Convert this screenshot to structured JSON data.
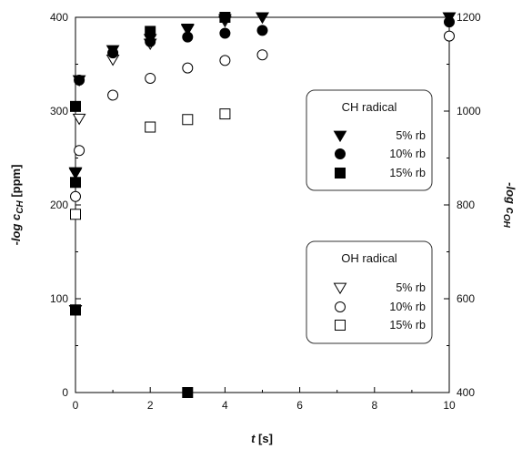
{
  "chart_data": {
    "type": "scatter",
    "xlabel": {
      "main": "t",
      "unit": " [s]"
    },
    "ylabel_left": {
      "prefix": "-log c",
      "sub": "CH",
      "unit": " [ppm]"
    },
    "ylabel_right": {
      "prefix": "-log c",
      "sub": "OH",
      "unit": ""
    },
    "xlim": [
      0,
      10
    ],
    "ylim_left": [
      0,
      400
    ],
    "ylim_right": [
      400,
      1200
    ],
    "xticks": [
      "0",
      "2",
      "4",
      "6",
      "8",
      "10"
    ],
    "yticks_left": [
      "0",
      "100",
      "200",
      "300",
      "400"
    ],
    "yticks_right": [
      "400",
      "600",
      "800",
      "1000",
      "1200"
    ],
    "grid": false,
    "legends": [
      {
        "title": "CH radical",
        "entries": [
          "5% rb",
          "10% rb",
          "15% rb"
        ]
      },
      {
        "title": "OH radical",
        "entries": [
          "5% rb",
          "10% rb",
          "15% rb"
        ]
      }
    ],
    "series": [
      {
        "group": "CH radical",
        "label": "5% rb",
        "axis": "left",
        "marker": "triangle-down-filled",
        "x": [
          0,
          0.1,
          1,
          2,
          3,
          4,
          5,
          10
        ],
        "y": [
          235,
          333,
          365,
          377,
          388,
          398,
          400,
          400
        ]
      },
      {
        "group": "CH radical",
        "label": "10% rb",
        "axis": "left",
        "marker": "circle-filled",
        "x": [
          0.1,
          1,
          2,
          3,
          4,
          5,
          10
        ],
        "y": [
          333,
          362,
          374,
          379,
          383,
          386,
          395
        ]
      },
      {
        "group": "CH radical",
        "label": "15% rb",
        "axis": "left",
        "marker": "square-filled",
        "x": [
          0,
          0,
          0,
          2,
          3,
          4
        ],
        "y": [
          88,
          224,
          305,
          385,
          0,
          400
        ]
      },
      {
        "group": "OH radical",
        "label": "5% rb",
        "axis": "left",
        "marker": "triangle-down-open",
        "x": [
          0,
          0,
          0.1,
          1,
          2,
          3,
          4,
          5,
          10
        ],
        "y": [
          88,
          234,
          292,
          355,
          372,
          387,
          396,
          400,
          400
        ]
      },
      {
        "group": "OH radical",
        "label": "10% rb",
        "axis": "left",
        "marker": "circle-open",
        "x": [
          0,
          0,
          0.1,
          1,
          2,
          3,
          4,
          5,
          10
        ],
        "y": [
          88,
          209,
          258,
          317,
          335,
          346,
          354,
          360,
          380
        ]
      },
      {
        "group": "OH radical",
        "label": "15% rb",
        "axis": "left",
        "marker": "square-open",
        "x": [
          0,
          0,
          2,
          3,
          4
        ],
        "y": [
          88,
          190,
          283,
          291,
          297
        ]
      }
    ]
  }
}
